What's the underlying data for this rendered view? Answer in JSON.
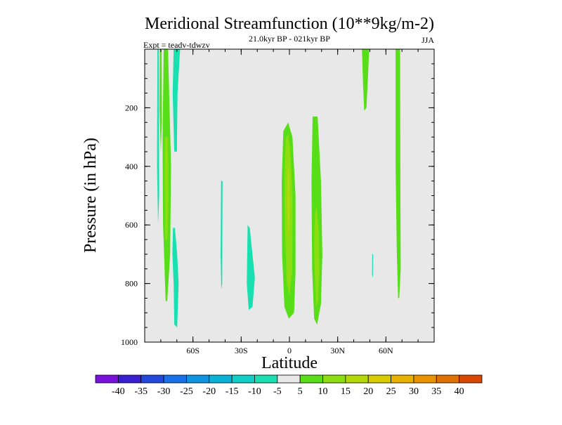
{
  "chart_data": {
    "type": "contour",
    "title": "Meridional Streamfunction (10**9kg/m-2)",
    "subtitle": "21.0kyr BP - 021kyr BP",
    "left_annotation": "Expt = teadv-tdwzv",
    "right_annotation": "JJA",
    "xlabel": "Latitude",
    "ylabel": "Pressure (in hPa)",
    "xlim": [
      -90,
      90
    ],
    "ylim": [
      0,
      1000
    ],
    "y_reversed": true,
    "x_ticks": [
      {
        "value": -60,
        "label": "60S"
      },
      {
        "value": -30,
        "label": "30S"
      },
      {
        "value": 0,
        "label": "0"
      },
      {
        "value": 30,
        "label": "30N"
      },
      {
        "value": 60,
        "label": "60N"
      }
    ],
    "y_ticks": [
      {
        "value": 200,
        "label": "200"
      },
      {
        "value": 400,
        "label": "400"
      },
      {
        "value": 600,
        "label": "600"
      },
      {
        "value": 800,
        "label": "800"
      },
      {
        "value": 1000,
        "label": "1000"
      }
    ],
    "background_color": "#e8e8e8",
    "colorbar": {
      "levels": [
        -40,
        -35,
        -30,
        -25,
        -20,
        -15,
        -10,
        -5,
        5,
        10,
        15,
        20,
        25,
        30,
        35,
        40
      ],
      "labels": [
        "-40",
        "-35",
        "-30",
        "-25",
        "-20",
        "-15",
        "-10",
        "-5",
        "5",
        "10",
        "15",
        "20",
        "25",
        "30",
        "35",
        "40"
      ],
      "colors": [
        "#7a10dc",
        "#3a1ed2",
        "#2248e0",
        "#1a70e8",
        "#0e94e0",
        "#09b3d8",
        "#0fcfc8",
        "#19e0b0",
        "#e8e8e8",
        "#58de18",
        "#8cde10",
        "#b4d808",
        "#d8cc00",
        "#e8b000",
        "#e89200",
        "#e07000",
        "#d84800"
      ]
    },
    "regions": [
      {
        "name": "nh-polar-positive-cell-outer",
        "interval": "5 to 10",
        "color": "#58de18",
        "points": [
          [
            -78.2,
            0
          ],
          [
            -75.5,
            0
          ],
          [
            -73.6,
            400
          ],
          [
            -74.2,
            700
          ],
          [
            -76.0,
            860
          ],
          [
            -77.0,
            860
          ],
          [
            -78.6,
            600
          ],
          [
            -78.9,
            300
          ]
        ]
      },
      {
        "name": "nh-polar-positive-cell-inner",
        "interval": "10 to 15",
        "color": "#8cde10",
        "points": [
          [
            -77.4,
            300
          ],
          [
            -75.6,
            300
          ],
          [
            -75.2,
            500
          ],
          [
            -75.9,
            650
          ],
          [
            -77.2,
            650
          ],
          [
            -77.6,
            450
          ]
        ]
      },
      {
        "name": "polar-left-edge-negative",
        "interval": "-10 to -5",
        "color": "#19e0b0",
        "points": [
          [
            -82.1,
            0
          ],
          [
            -81.2,
            0
          ],
          [
            -81.0,
            500
          ],
          [
            -81.7,
            600
          ],
          [
            -82.3,
            400
          ]
        ]
      },
      {
        "name": "polar-right-edge-positive",
        "interval": "5 to 10",
        "color": "#58de18",
        "points": [
          [
            -80.6,
            0
          ],
          [
            -79.5,
            0
          ],
          [
            -79.3,
            250
          ],
          [
            -80.0,
            350
          ],
          [
            -80.8,
            200
          ]
        ]
      },
      {
        "name": "sh-negative-cell-upper",
        "interval": "-10 to -5",
        "color": "#19e0b0",
        "points": [
          [
            -72.0,
            0
          ],
          [
            -68.0,
            0
          ],
          [
            -69.6,
            150
          ],
          [
            -70.0,
            350
          ],
          [
            -71.6,
            350
          ],
          [
            -72.6,
            150
          ]
        ]
      },
      {
        "name": "sh-negative-cell-lower",
        "interval": "-10 to -5",
        "color": "#19e0b0",
        "points": [
          [
            -72.4,
            610
          ],
          [
            -71.2,
            610
          ],
          [
            -69.8,
            700
          ],
          [
            -68.9,
            800
          ],
          [
            -69.8,
            950
          ],
          [
            -71.6,
            940
          ],
          [
            -72.0,
            800
          ],
          [
            -72.8,
            700
          ]
        ]
      },
      {
        "name": "sh-midlat-negative-filament",
        "interval": "-10 to -5",
        "color": "#19e0b0",
        "points": [
          [
            -42.5,
            450
          ],
          [
            -41.6,
            450
          ],
          [
            -41.8,
            800
          ],
          [
            -42.4,
            820
          ],
          [
            -42.8,
            700
          ]
        ]
      },
      {
        "name": "sh-subtropical-negative-cell",
        "interval": "-10 to -5",
        "color": "#19e0b0",
        "points": [
          [
            -26.0,
            600
          ],
          [
            -24.7,
            610
          ],
          [
            -21.5,
            780
          ],
          [
            -23.0,
            880
          ],
          [
            -25.3,
            890
          ],
          [
            -26.5,
            800
          ]
        ]
      },
      {
        "name": "tropical-positive-cell-outer",
        "interval": "5 to 10",
        "color": "#58de18",
        "points": [
          [
            -3.8,
            280
          ],
          [
            -0.8,
            250
          ],
          [
            1.9,
            300
          ],
          [
            3.8,
            500
          ],
          [
            3.8,
            760
          ],
          [
            2.9,
            900
          ],
          [
            -0.4,
            920
          ],
          [
            -3.1,
            880
          ],
          [
            -4.6,
            700
          ],
          [
            -4.8,
            450
          ]
        ]
      },
      {
        "name": "tropical-positive-cell-middle",
        "interval": "10 to 15",
        "color": "#8cde10",
        "points": [
          [
            -2.4,
            310
          ],
          [
            -0.8,
            290
          ],
          [
            0.6,
            350
          ],
          [
            1.9,
            500
          ],
          [
            1.7,
            760
          ],
          [
            0,
            840
          ],
          [
            -1.6,
            800
          ],
          [
            -2.9,
            600
          ],
          [
            -3.0,
            450
          ]
        ]
      },
      {
        "name": "tropical-positive-cell-inner",
        "interval": "15 to 20",
        "color": "#b4d808",
        "points": [
          [
            -0.9,
            400
          ],
          [
            0,
            420
          ],
          [
            0.2,
            560
          ],
          [
            -0.7,
            640
          ],
          [
            -1.6,
            520
          ]
        ]
      },
      {
        "name": "nh-subtropical-positive-cell-outer",
        "interval": "5 to 10",
        "color": "#58de18",
        "points": [
          [
            14.4,
            230
          ],
          [
            17.5,
            230
          ],
          [
            19.6,
            450
          ],
          [
            20.5,
            700
          ],
          [
            19.6,
            870
          ],
          [
            17.2,
            940
          ],
          [
            15.4,
            920
          ],
          [
            14.1,
            750
          ],
          [
            13.7,
            450
          ]
        ]
      },
      {
        "name": "nh-subtropical-positive-cell-inner",
        "interval": "10 to 15",
        "color": "#8cde10",
        "points": [
          [
            15.9,
            560
          ],
          [
            17.0,
            540
          ],
          [
            18.4,
            640
          ],
          [
            18.7,
            760
          ],
          [
            17.8,
            860
          ],
          [
            16.6,
            880
          ],
          [
            15.9,
            780
          ],
          [
            15.4,
            680
          ]
        ]
      },
      {
        "name": "nh-midlat-positive-band",
        "interval": "5 to 10",
        "color": "#58de18",
        "points": [
          [
            45.1,
            0
          ],
          [
            49.6,
            0
          ],
          [
            48.8,
            100
          ],
          [
            47.9,
            200
          ],
          [
            46.5,
            210
          ],
          [
            45.8,
            120
          ]
        ]
      },
      {
        "name": "nh-midlat-negative-speck",
        "interval": "-10 to -5",
        "color": "#19e0b0",
        "points": [
          [
            51.5,
            700
          ],
          [
            52.0,
            700
          ],
          [
            51.9,
            780
          ],
          [
            51.4,
            770
          ]
        ]
      },
      {
        "name": "nh-polar-positive-band",
        "interval": "5 to 10",
        "color": "#58de18",
        "points": [
          [
            66.0,
            0
          ],
          [
            68.8,
            0
          ],
          [
            69.0,
            450
          ],
          [
            69.2,
            750
          ],
          [
            68.3,
            850
          ],
          [
            67.6,
            850
          ],
          [
            66.8,
            700
          ],
          [
            66.0,
            400
          ]
        ]
      }
    ]
  }
}
